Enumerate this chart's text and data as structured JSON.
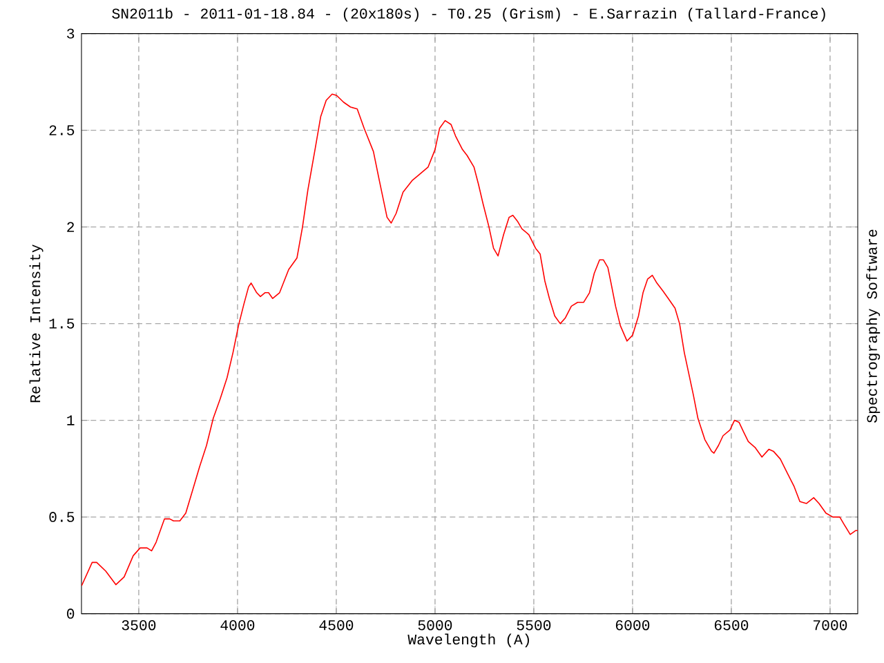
{
  "chart_data": {
    "type": "line",
    "title": "SN2011b - 2011-01-18.84 - (20x180s) -  T0.25 (Grism) - E.Sarrazin (Tallard-France)",
    "xlabel": "Wavelength (A)",
    "ylabel": "Relative Intensity",
    "annotations": [
      "Spectrography Software"
    ],
    "xlim": [
      3210,
      7140
    ],
    "ylim": [
      0,
      3
    ],
    "xticks": [
      3500,
      4000,
      4500,
      5000,
      5500,
      6000,
      6500,
      7000
    ],
    "yticks": [
      0,
      0.5,
      1,
      1.5,
      2,
      2.5,
      3
    ],
    "grid": true,
    "marker": "none",
    "line_style": "solid",
    "series": [
      {
        "color": "#ff0000",
        "x": [
          3211,
          3264,
          3287,
          3333,
          3384,
          3426,
          3472,
          3507,
          3542,
          3565,
          3588,
          3630,
          3657,
          3676,
          3708,
          3738,
          3773,
          3808,
          3843,
          3877,
          3912,
          3947,
          3977,
          4005,
          4032,
          4056,
          4069,
          4097,
          4116,
          4139,
          4157,
          4178,
          4213,
          4236,
          4259,
          4301,
          4329,
          4356,
          4394,
          4421,
          4449,
          4479,
          4502,
          4537,
          4572,
          4606,
          4641,
          4688,
          4718,
          4757,
          4778,
          4803,
          4838,
          4884,
          4931,
          4965,
          5000,
          5023,
          5051,
          5081,
          5104,
          5139,
          5162,
          5197,
          5220,
          5243,
          5273,
          5296,
          5319,
          5347,
          5375,
          5394,
          5417,
          5440,
          5475,
          5509,
          5532,
          5556,
          5579,
          5606,
          5634,
          5660,
          5690,
          5722,
          5752,
          5782,
          5806,
          5833,
          5852,
          5875,
          5891,
          5914,
          5938,
          5972,
          6000,
          6030,
          6053,
          6076,
          6100,
          6123,
          6153,
          6181,
          6215,
          6238,
          6262,
          6285,
          6308,
          6331,
          6366,
          6400,
          6412,
          6435,
          6458,
          6493,
          6516,
          6539,
          6562,
          6586,
          6620,
          6655,
          6690,
          6713,
          6748,
          6782,
          6817,
          6847,
          6880,
          6917,
          6944,
          6979,
          7014,
          7049,
          7072,
          7102,
          7130,
          7140
        ],
        "values": [
          0.145,
          0.265,
          0.265,
          0.22,
          0.15,
          0.19,
          0.3,
          0.34,
          0.34,
          0.325,
          0.37,
          0.49,
          0.49,
          0.48,
          0.48,
          0.52,
          0.64,
          0.76,
          0.87,
          1.01,
          1.11,
          1.22,
          1.35,
          1.49,
          1.6,
          1.69,
          1.71,
          1.66,
          1.64,
          1.66,
          1.66,
          1.63,
          1.66,
          1.72,
          1.78,
          1.84,
          2.0,
          2.19,
          2.41,
          2.57,
          2.655,
          2.687,
          2.68,
          2.645,
          2.62,
          2.61,
          2.51,
          2.39,
          2.24,
          2.05,
          2.02,
          2.07,
          2.18,
          2.24,
          2.28,
          2.31,
          2.4,
          2.51,
          2.55,
          2.53,
          2.47,
          2.4,
          2.37,
          2.31,
          2.22,
          2.12,
          2.0,
          1.89,
          1.85,
          1.96,
          2.05,
          2.06,
          2.03,
          1.99,
          1.96,
          1.89,
          1.86,
          1.72,
          1.63,
          1.54,
          1.5,
          1.53,
          1.59,
          1.61,
          1.61,
          1.66,
          1.76,
          1.83,
          1.83,
          1.79,
          1.71,
          1.59,
          1.49,
          1.41,
          1.44,
          1.54,
          1.66,
          1.73,
          1.75,
          1.71,
          1.67,
          1.63,
          1.58,
          1.5,
          1.35,
          1.24,
          1.13,
          1.01,
          0.9,
          0.84,
          0.83,
          0.87,
          0.92,
          0.95,
          1.0,
          0.99,
          0.94,
          0.89,
          0.86,
          0.81,
          0.85,
          0.84,
          0.8,
          0.73,
          0.66,
          0.58,
          0.57,
          0.6,
          0.57,
          0.52,
          0.5,
          0.5,
          0.46,
          0.41,
          0.43,
          0.43
        ]
      }
    ]
  }
}
